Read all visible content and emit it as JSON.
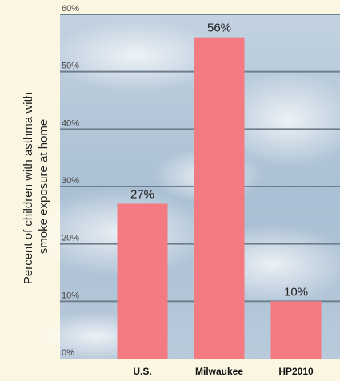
{
  "chart_data": {
    "type": "bar",
    "title": "",
    "xlabel": "",
    "ylabel_lines": [
      "Percent of children with asthma with",
      "smoke exposure at home"
    ],
    "categories": [
      "U.S.",
      "Milwaukee",
      "HP2010"
    ],
    "values": [
      27,
      56,
      10
    ],
    "data_labels": [
      "27%",
      "56%",
      "10%"
    ],
    "ylim": [
      0,
      60
    ],
    "yticks": [
      0,
      10,
      20,
      30,
      40,
      50,
      60
    ],
    "ytick_labels": [
      "0%",
      "10%",
      "20%",
      "30%",
      "40%",
      "50%",
      "60%"
    ],
    "grid": true,
    "colors": {
      "bar": "#f27a80",
      "grid": "#6e7e8c",
      "plot_background": "#b8c9d8",
      "page_background": "#fbf6e2"
    }
  }
}
